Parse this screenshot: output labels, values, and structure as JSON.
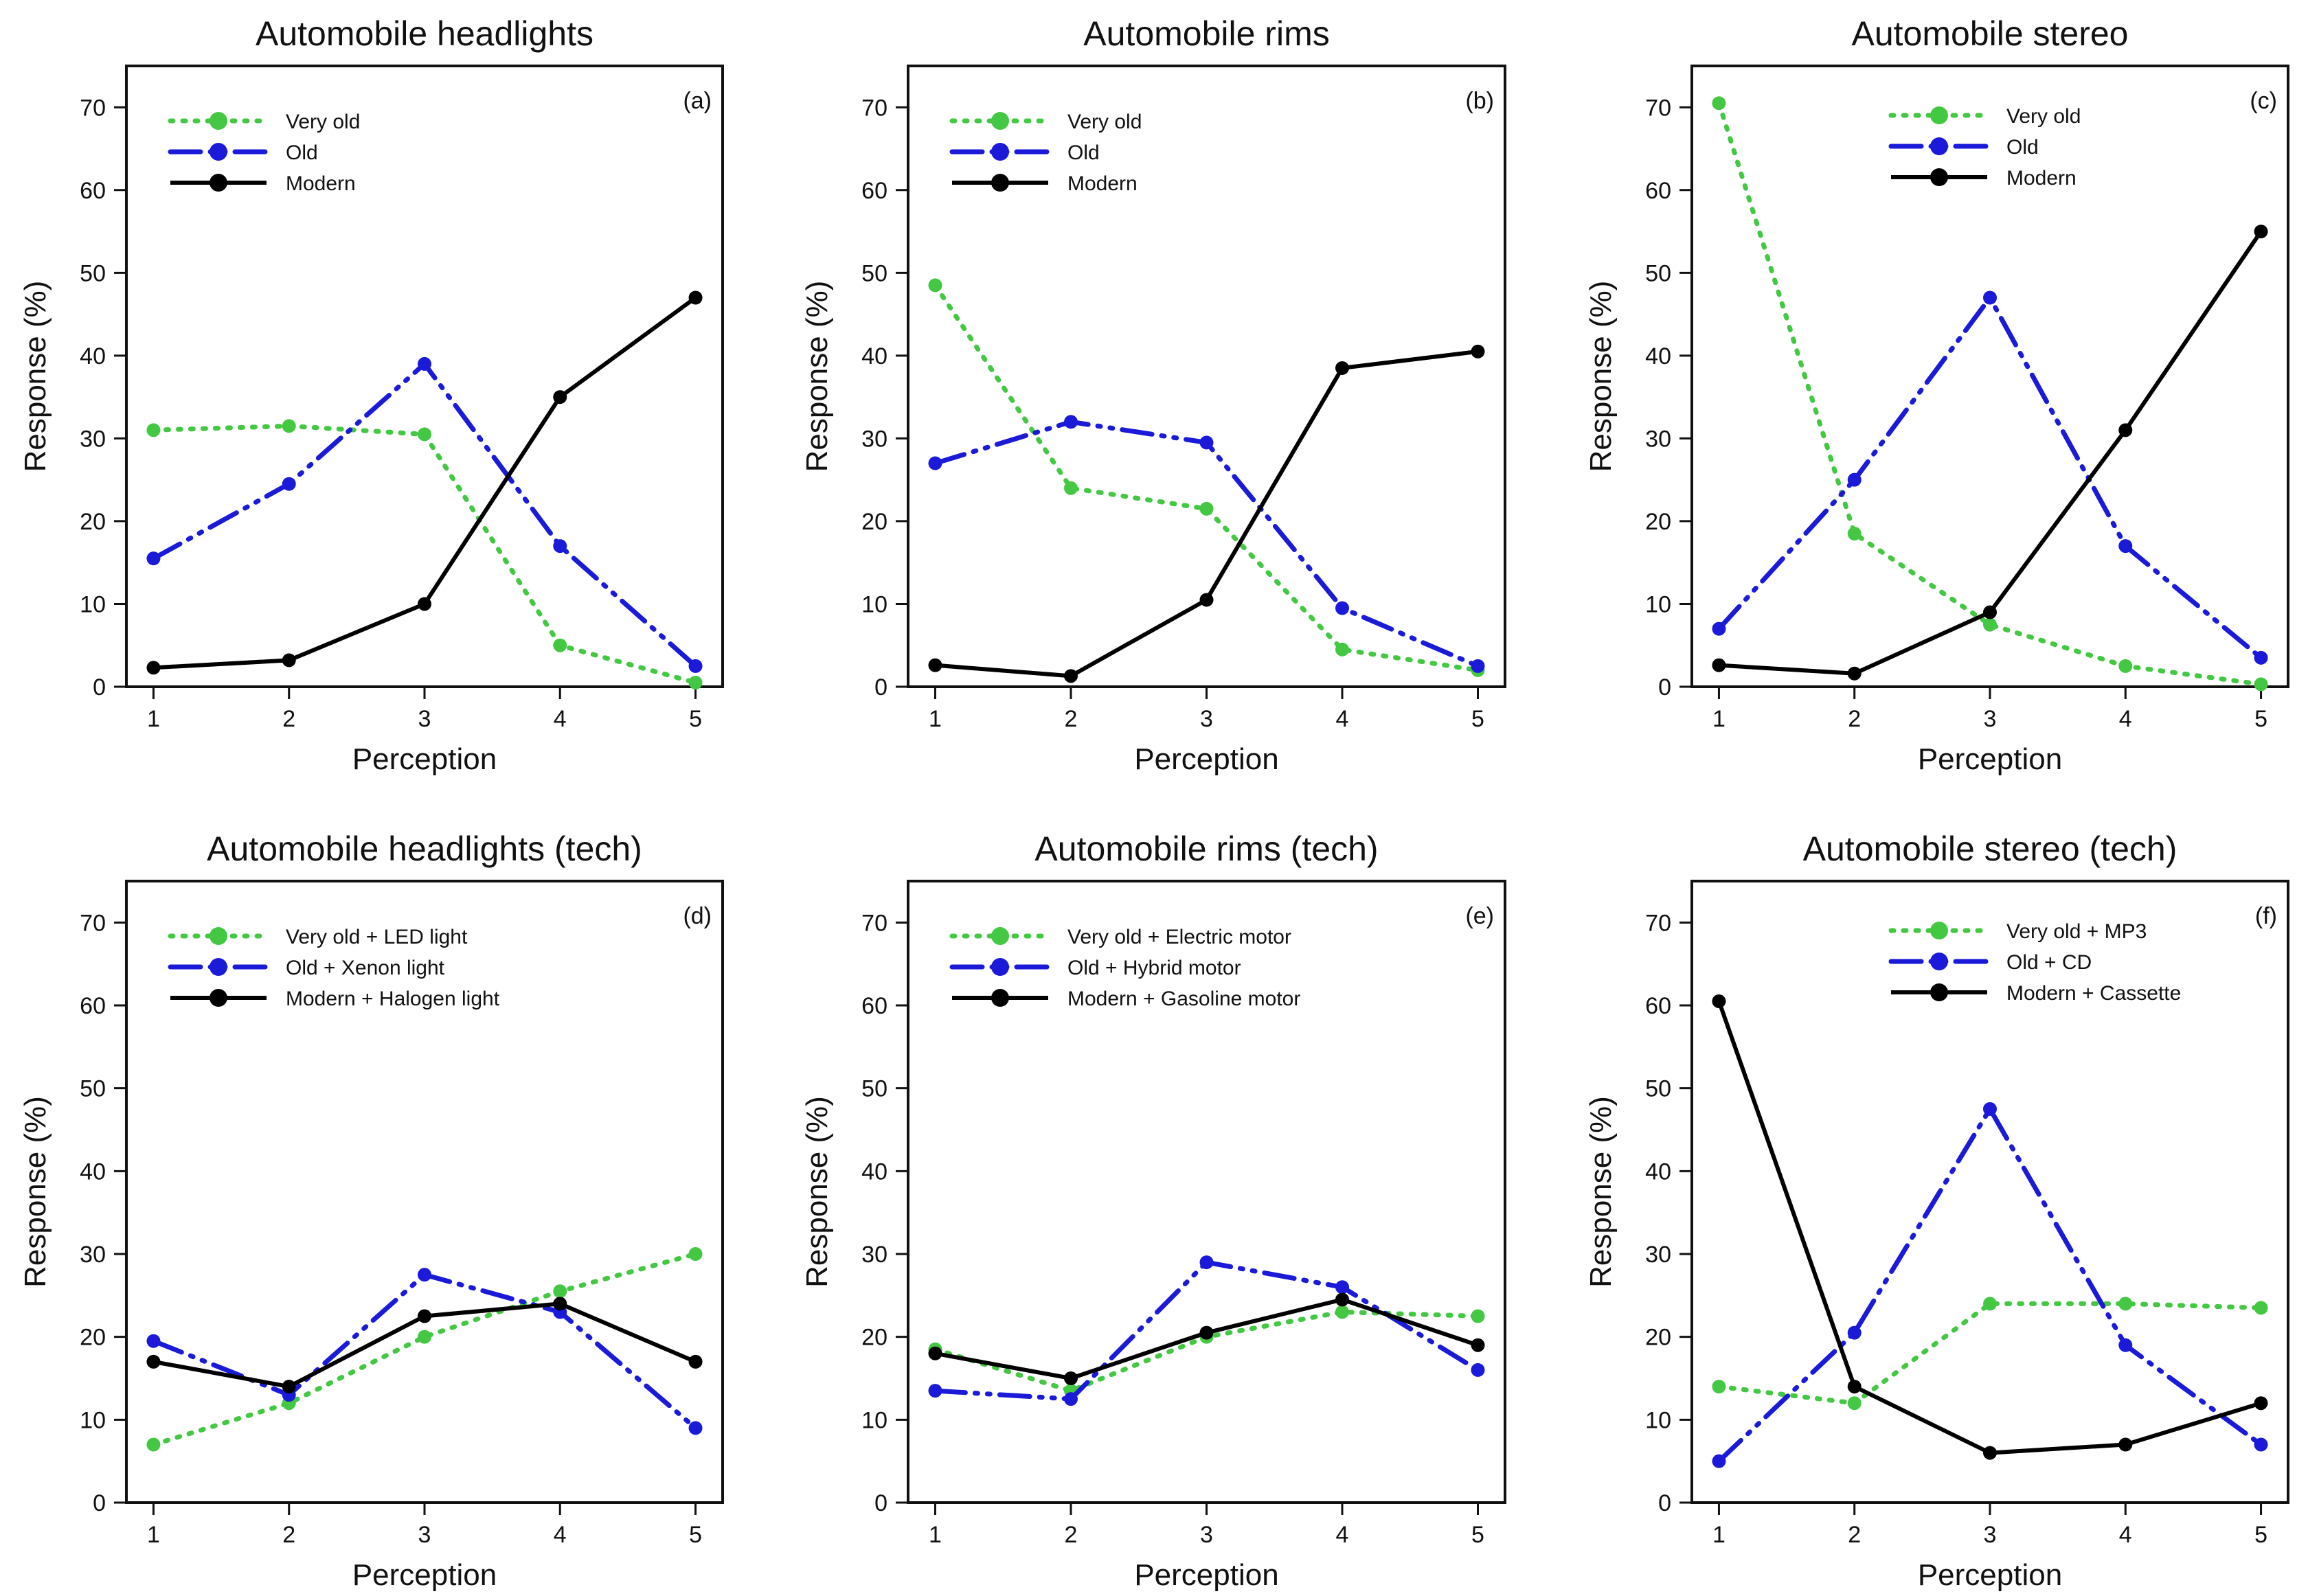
{
  "chart_data": [
    {
      "type": "line",
      "title": "Automobile headlights",
      "panel_label": "(a)",
      "xlabel": "Perception",
      "ylabel": "Response (%)",
      "x": [
        1,
        2,
        3,
        4,
        5
      ],
      "xlim": [
        0.8,
        5.2
      ],
      "ylim": [
        0,
        75
      ],
      "y_ticks": [
        0,
        10,
        20,
        30,
        40,
        50,
        60,
        70
      ],
      "legend_position": "top-left",
      "series": [
        {
          "name": "Very old",
          "color": "#44c844",
          "style": "dotted",
          "values": [
            31,
            31.5,
            30.5,
            5,
            0.5
          ]
        },
        {
          "name": "Old",
          "color": "#1a1ad8",
          "style": "dash-dot-dot",
          "values": [
            15.5,
            24.5,
            39,
            17,
            2.5
          ]
        },
        {
          "name": "Modern",
          "color": "#000000",
          "style": "solid",
          "values": [
            2.3,
            3.2,
            10,
            35,
            47
          ]
        }
      ]
    },
    {
      "type": "line",
      "title": "Automobile rims",
      "panel_label": "(b)",
      "xlabel": "Perception",
      "ylabel": "Response (%)",
      "x": [
        1,
        2,
        3,
        4,
        5
      ],
      "xlim": [
        0.8,
        5.2
      ],
      "ylim": [
        0,
        75
      ],
      "y_ticks": [
        0,
        10,
        20,
        30,
        40,
        50,
        60,
        70
      ],
      "legend_position": "top-left",
      "series": [
        {
          "name": "Very old",
          "color": "#44c844",
          "style": "dotted",
          "values": [
            48.5,
            24,
            21.5,
            4.5,
            2
          ]
        },
        {
          "name": "Old",
          "color": "#1a1ad8",
          "style": "dash-dot-dot",
          "values": [
            27,
            32,
            29.5,
            9.5,
            2.5
          ]
        },
        {
          "name": "Modern",
          "color": "#000000",
          "style": "solid",
          "values": [
            2.6,
            1.3,
            10.5,
            38.5,
            40.5
          ]
        }
      ]
    },
    {
      "type": "line",
      "title": "Automobile stereo",
      "panel_label": "(c)",
      "xlabel": "Perception",
      "ylabel": "Response (%)",
      "x": [
        1,
        2,
        3,
        4,
        5
      ],
      "xlim": [
        0.8,
        5.2
      ],
      "ylim": [
        0,
        75
      ],
      "y_ticks": [
        0,
        10,
        20,
        30,
        40,
        50,
        60,
        70
      ],
      "legend_position": "top-center",
      "series": [
        {
          "name": "Very old",
          "color": "#44c844",
          "style": "dotted",
          "values": [
            70.5,
            18.5,
            7.5,
            2.5,
            0.3
          ]
        },
        {
          "name": "Old",
          "color": "#1a1ad8",
          "style": "dash-dot-dot",
          "values": [
            7,
            25,
            47,
            17,
            3.5
          ]
        },
        {
          "name": "Modern",
          "color": "#000000",
          "style": "solid",
          "values": [
            2.6,
            1.6,
            9,
            31,
            55
          ]
        }
      ]
    },
    {
      "type": "line",
      "title": "Automobile headlights (tech)",
      "panel_label": "(d)",
      "xlabel": "Perception",
      "ylabel": "Response (%)",
      "x": [
        1,
        2,
        3,
        4,
        5
      ],
      "xlim": [
        0.8,
        5.2
      ],
      "ylim": [
        0,
        75
      ],
      "y_ticks": [
        0,
        10,
        20,
        30,
        40,
        50,
        60,
        70
      ],
      "legend_position": "top-left",
      "series": [
        {
          "name": "Very old + LED light",
          "color": "#44c844",
          "style": "dotted",
          "values": [
            7,
            12,
            20,
            25.5,
            30
          ]
        },
        {
          "name": "Old + Xenon light",
          "color": "#1a1ad8",
          "style": "dash-dot-dot",
          "values": [
            19.5,
            13,
            27.5,
            23,
            9
          ]
        },
        {
          "name": "Modern + Halogen light",
          "color": "#000000",
          "style": "solid",
          "values": [
            17,
            14,
            22.5,
            24,
            17
          ]
        }
      ]
    },
    {
      "type": "line",
      "title": "Automobile rims (tech)",
      "panel_label": "(e)",
      "xlabel": "Perception",
      "ylabel": "Response (%)",
      "x": [
        1,
        2,
        3,
        4,
        5
      ],
      "xlim": [
        0.8,
        5.2
      ],
      "ylim": [
        0,
        75
      ],
      "y_ticks": [
        0,
        10,
        20,
        30,
        40,
        50,
        60,
        70
      ],
      "legend_position": "top-left",
      "series": [
        {
          "name": "Very old + Electric motor",
          "color": "#44c844",
          "style": "dotted",
          "values": [
            18.5,
            13.5,
            20,
            23,
            22.5
          ]
        },
        {
          "name": "Old + Hybrid motor",
          "color": "#1a1ad8",
          "style": "dash-dot-dot",
          "values": [
            13.5,
            12.5,
            29,
            26,
            16
          ]
        },
        {
          "name": "Modern + Gasoline motor",
          "color": "#000000",
          "style": "solid",
          "values": [
            18,
            15,
            20.5,
            24.5,
            19
          ]
        }
      ]
    },
    {
      "type": "line",
      "title": "Automobile stereo (tech)",
      "panel_label": "(f)",
      "xlabel": "Perception",
      "ylabel": "Response (%)",
      "x": [
        1,
        2,
        3,
        4,
        5
      ],
      "xlim": [
        0.8,
        5.2
      ],
      "ylim": [
        0,
        75
      ],
      "y_ticks": [
        0,
        10,
        20,
        30,
        40,
        50,
        60,
        70
      ],
      "legend_position": "top-center",
      "series": [
        {
          "name": "Very old + MP3",
          "color": "#44c844",
          "style": "dotted",
          "values": [
            14,
            12,
            24,
            24,
            23.5
          ]
        },
        {
          "name": "Old + CD",
          "color": "#1a1ad8",
          "style": "dash-dot-dot",
          "values": [
            5,
            20.5,
            47.5,
            19,
            7
          ]
        },
        {
          "name": "Modern + Cassette",
          "color": "#000000",
          "style": "solid",
          "values": [
            60.5,
            14,
            6,
            7,
            12
          ]
        }
      ]
    }
  ]
}
